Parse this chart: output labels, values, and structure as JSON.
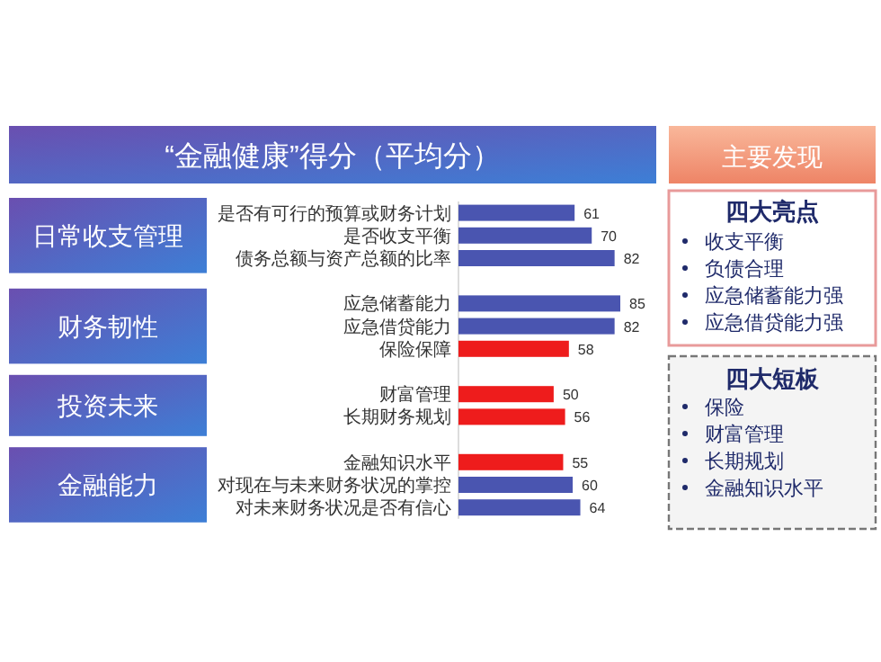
{
  "chart_data": [
    {
      "type": "bar",
      "orientation": "horizontal",
      "title": "“金融健康”得分（平均分）",
      "data_labels": true,
      "categories": [
        "是否有可行的预算或财务计划",
        "是否收支平衡",
        "债务总额与资产总额的比率",
        null,
        "应急储蓄能力",
        "应急借贷能力",
        "保险保障",
        null,
        "财富管理",
        "长期财务规划",
        null,
        "金融知识水平",
        "对现在与未来财务状况的掌控",
        "对未来财务状况是否有信心"
      ],
      "values": [
        61,
        70,
        82,
        null,
        85,
        82,
        58,
        null,
        50,
        56,
        null,
        55,
        60,
        64
      ],
      "colors": [
        "#4a55b0",
        "#4a55b0",
        "#4a55b0",
        null,
        "#4a55b0",
        "#4a55b0",
        "#ee1c1c",
        null,
        "#ee1c1c",
        "#ee1c1c",
        null,
        "#ee1c1c",
        "#4a55b0",
        "#4a55b0"
      ],
      "annotations": [
        "日常收支管理",
        "财务韧性",
        "投资未来",
        "金融能力"
      ]
    },
    {
      "type": "other",
      "title": "主要发现",
      "subtitle": "四大亮点",
      "annotations": [
        "收支平衡",
        "负债合理",
        "应急储蓄能力强",
        "应急借贷能力强"
      ]
    },
    {
      "type": "other",
      "title": "四大短板",
      "annotations": [
        "保险",
        "财富管理",
        "长期规划",
        "金融知识水平"
      ]
    }
  ]
}
